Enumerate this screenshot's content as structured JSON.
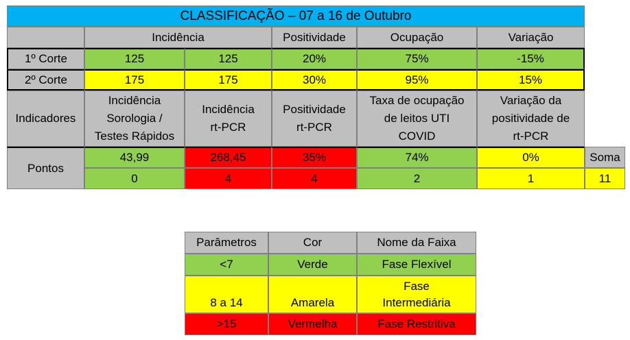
{
  "main_table": {
    "title": "CLASSIFICAÇÃO – 07 a 16 de Outubro",
    "headers": {
      "incidencia": "Incidência",
      "positividade": "Positividade",
      "ocupacao": "Ocupação",
      "variacao": "Variação"
    },
    "corte1": {
      "label": "1º Corte",
      "values": [
        "125",
        "125",
        "20%",
        "75%",
        "-15%"
      ]
    },
    "corte2": {
      "label": "2º Corte",
      "values": [
        "175",
        "175",
        "30%",
        "95%",
        "15%"
      ]
    },
    "indicadores": {
      "label": "Indicadores",
      "items": [
        "Incidência\nSorologia /\nTestes Rápidos",
        "Incidência\nrt-PCR",
        "Positividade\nrt-PCR",
        "Taxa de ocupação\nde leitos UTI\nCOVID",
        "Variação da\npositividade de\nrt-PCR"
      ]
    },
    "pontos": {
      "label": "Pontos",
      "values": [
        "43,99",
        "268,45",
        "35%",
        "74%",
        "0%"
      ],
      "scores": [
        "0",
        "4",
        "4",
        "2",
        "1"
      ],
      "soma_label": "Soma",
      "soma_value": "11"
    },
    "colors": {
      "title": "#00b0f0",
      "header": "#bfbfbf",
      "green": "#92d050",
      "yellow": "#ffff00",
      "red": "#ff0000"
    }
  },
  "legend_table": {
    "headers": [
      "Parâmetros",
      "Cor",
      "Nome da Faixa"
    ],
    "rows": [
      {
        "param": "<7",
        "cor": "Verde",
        "faixa": "Fase Flexível"
      },
      {
        "param": "8 a 14",
        "cor": "Amarela",
        "faixa": "Fase\nIntermediária"
      },
      {
        "param": ">15",
        "cor": "Vermelha",
        "faixa": "Fase Restritiva"
      }
    ]
  }
}
